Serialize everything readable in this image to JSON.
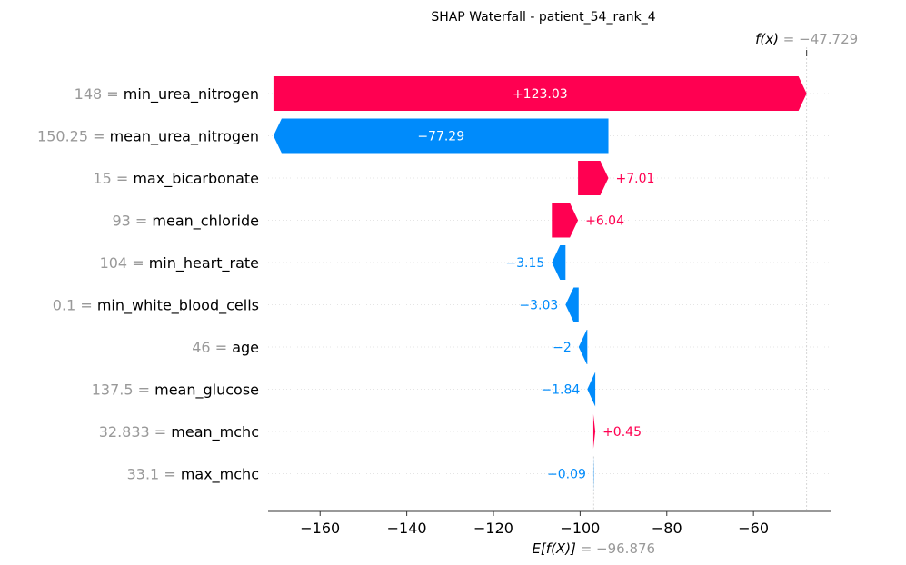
{
  "chart_data": {
    "type": "waterfall",
    "title": "SHAP Waterfall - patient_54_rank_4",
    "base_value": -96.876,
    "base_value_label": "= −96.876",
    "base_label_prefix": "E[f(X)]",
    "output_value": -47.729,
    "output_value_label": "= −47.729",
    "output_label_prefix": "f(x)",
    "xlim": [
      -172,
      -42
    ],
    "xticks": [
      -160,
      -140,
      -120,
      -100,
      -80,
      -60
    ],
    "xtick_labels": [
      "−160",
      "−140",
      "−120",
      "−100",
      "−80",
      "−60"
    ],
    "features": [
      {
        "value": "148",
        "name": "min_urea_nitrogen",
        "shap": 123.03,
        "label": "+123.03",
        "start": -170.759,
        "end": -47.729
      },
      {
        "value": "150.25",
        "name": "mean_urea_nitrogen",
        "shap": -77.29,
        "label": "−77.29",
        "start": -93.469,
        "end": -170.759
      },
      {
        "value": "15",
        "name": "max_bicarbonate",
        "shap": 7.01,
        "label": "+7.01",
        "start": -100.479,
        "end": -93.469
      },
      {
        "value": "93",
        "name": "mean_chloride",
        "shap": 6.04,
        "label": "+6.04",
        "start": -106.519,
        "end": -100.479
      },
      {
        "value": "104",
        "name": "min_heart_rate",
        "shap": -3.15,
        "label": "−3.15",
        "start": -103.369,
        "end": -106.519
      },
      {
        "value": "0.1",
        "name": "min_white_blood_cells",
        "shap": -3.03,
        "label": "−3.03",
        "start": -100.339,
        "end": -103.369
      },
      {
        "value": "46",
        "name": "age",
        "shap": -2,
        "label": "−2",
        "start": -98.339,
        "end": -100.339
      },
      {
        "value": "137.5",
        "name": "mean_glucose",
        "shap": -1.84,
        "label": "−1.84",
        "start": -96.499,
        "end": -98.339
      },
      {
        "value": "32.833",
        "name": "mean_mchc",
        "shap": 0.45,
        "label": "+0.45",
        "start": -96.949,
        "end": -96.499
      },
      {
        "value": "33.1",
        "name": "max_mchc",
        "shap": -0.09,
        "label": "−0.09",
        "start": -96.859,
        "end": -96.949
      }
    ],
    "colors": {
      "positive": "#ff0051",
      "negative": "#008bfb",
      "muted": "#999999",
      "grid": "#cccccc"
    }
  }
}
